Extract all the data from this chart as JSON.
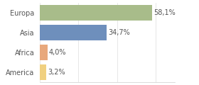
{
  "categories": [
    "Europa",
    "Asia",
    "Africa",
    "America"
  ],
  "values": [
    58.1,
    34.7,
    4.0,
    3.2
  ],
  "bar_colors": [
    "#a8bc8a",
    "#6e8fbc",
    "#e8a87c",
    "#f0d080"
  ],
  "labels": [
    "58,1%",
    "34,7%",
    "4,0%",
    "3,2%"
  ],
  "xlim": [
    0,
    70
  ],
  "background_color": "#ffffff",
  "label_fontsize": 7.0,
  "category_fontsize": 7.0,
  "bar_height": 0.78
}
